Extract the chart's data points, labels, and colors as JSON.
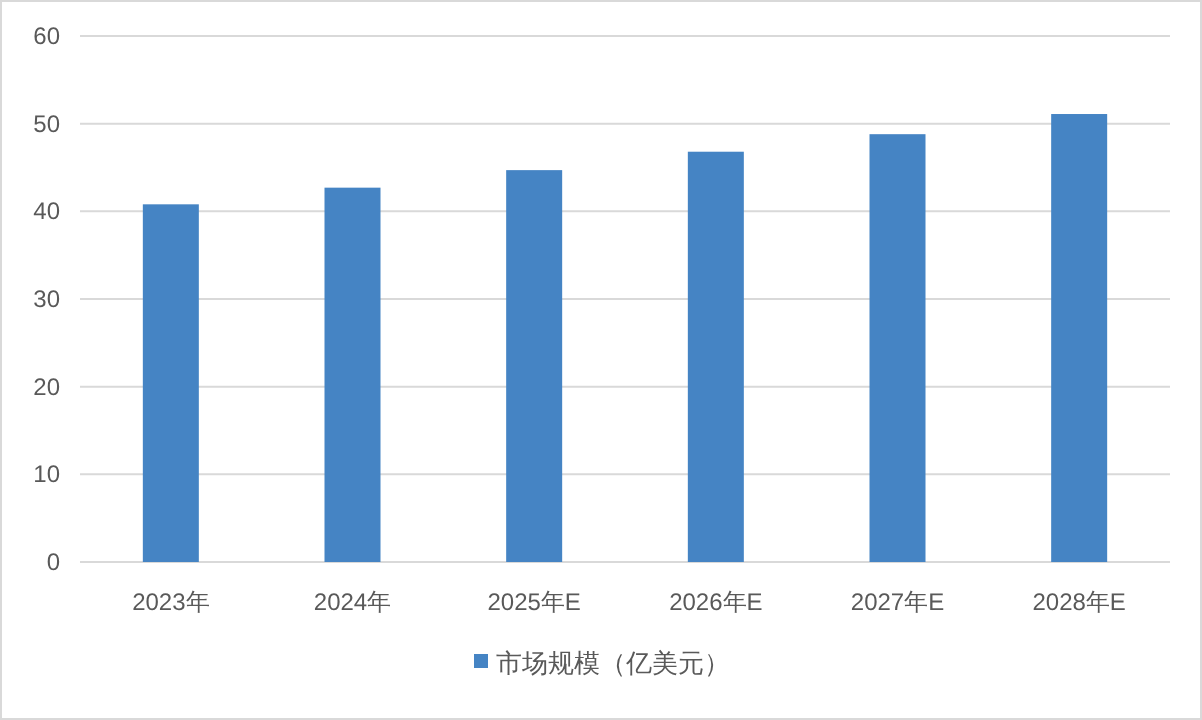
{
  "chart_data": {
    "type": "bar",
    "categories": [
      "2023年",
      "2024年",
      "2025年E",
      "2026年E",
      "2027年E",
      "2028年E"
    ],
    "series": [
      {
        "name": "市场规模（亿美元）",
        "color": "#4584c4",
        "values": [
          40.8,
          42.7,
          44.7,
          46.8,
          48.8,
          51.1
        ]
      }
    ],
    "ylim": [
      0,
      60
    ],
    "yticks": [
      0,
      10,
      20,
      30,
      40,
      50,
      60
    ],
    "grid": "y",
    "legend": "bottom"
  }
}
